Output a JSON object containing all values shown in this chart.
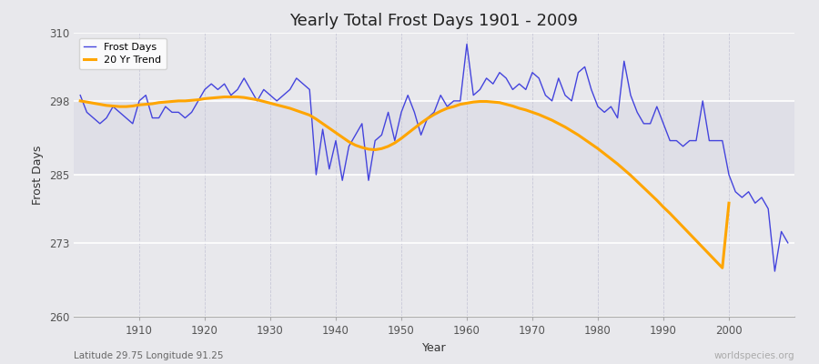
{
  "title": "Yearly Total Frost Days 1901 - 2009",
  "xlabel": "Year",
  "ylabel": "Frost Days",
  "subtitle": "Latitude 29.75 Longitude 91.25",
  "watermark": "worldspecies.org",
  "ylim": [
    260,
    310
  ],
  "yticks": [
    260,
    273,
    285,
    298,
    310
  ],
  "xlim": [
    1900,
    2010
  ],
  "xticks": [
    1910,
    1920,
    1930,
    1940,
    1950,
    1960,
    1970,
    1980,
    1990,
    2000
  ],
  "line_color": "#4444dd",
  "trend_color": "#FFA500",
  "bg_color": "#e8e8ec",
  "plot_bg": "#ebebef",
  "grid_color_h": "#d8d8e0",
  "grid_color_v": "#d0d0dc",
  "years": [
    1901,
    1902,
    1903,
    1904,
    1905,
    1906,
    1907,
    1908,
    1909,
    1910,
    1911,
    1912,
    1913,
    1914,
    1915,
    1916,
    1917,
    1918,
    1919,
    1920,
    1921,
    1922,
    1923,
    1924,
    1925,
    1926,
    1927,
    1928,
    1929,
    1930,
    1931,
    1932,
    1933,
    1934,
    1935,
    1936,
    1937,
    1938,
    1939,
    1940,
    1941,
    1942,
    1943,
    1944,
    1945,
    1946,
    1947,
    1948,
    1949,
    1950,
    1951,
    1952,
    1953,
    1954,
    1955,
    1956,
    1957,
    1958,
    1959,
    1960,
    1961,
    1962,
    1963,
    1964,
    1965,
    1966,
    1967,
    1968,
    1969,
    1970,
    1971,
    1972,
    1973,
    1974,
    1975,
    1976,
    1977,
    1978,
    1979,
    1980,
    1981,
    1982,
    1983,
    1984,
    1985,
    1986,
    1987,
    1988,
    1989,
    1990,
    1991,
    1992,
    1993,
    1994,
    1995,
    1996,
    1997,
    1998,
    1999,
    2000,
    2001,
    2002,
    2003,
    2004,
    2005,
    2006,
    2007,
    2008,
    2009
  ],
  "frost_days": [
    299,
    296,
    295,
    294,
    295,
    297,
    296,
    295,
    294,
    298,
    299,
    295,
    295,
    297,
    296,
    296,
    295,
    296,
    298,
    300,
    301,
    300,
    301,
    299,
    300,
    302,
    300,
    298,
    300,
    299,
    298,
    299,
    300,
    302,
    301,
    300,
    285,
    293,
    286,
    291,
    284,
    290,
    292,
    294,
    284,
    291,
    292,
    296,
    291,
    296,
    299,
    296,
    292,
    295,
    296,
    299,
    297,
    298,
    298,
    308,
    299,
    300,
    302,
    301,
    303,
    302,
    300,
    301,
    300,
    303,
    302,
    299,
    298,
    302,
    299,
    298,
    303,
    304,
    300,
    297,
    296,
    297,
    295,
    305,
    299,
    296,
    294,
    294,
    297,
    294,
    291,
    291,
    290,
    291,
    291,
    298,
    291,
    291,
    291,
    285,
    282,
    281,
    282,
    280,
    281,
    279,
    268,
    275,
    273
  ],
  "trend_years": [
    1901,
    1902,
    1903,
    1904,
    1905,
    1906,
    1907,
    1908,
    1909,
    1910,
    1911,
    1912,
    1913,
    1914,
    1915,
    1916,
    1917,
    1918,
    1919,
    1920,
    1921,
    1922,
    1923,
    1924,
    1925,
    1926,
    1927,
    1928,
    1929,
    1930,
    1931,
    1932,
    1933,
    1934,
    1935,
    1936,
    1937,
    1938,
    1939,
    1940,
    1941,
    1942,
    1943,
    1944,
    1945,
    1946,
    1947,
    1948,
    1949,
    1950,
    1951,
    1952,
    1953,
    1954,
    1955,
    1956,
    1957,
    1958,
    1959,
    1960,
    1961,
    1962,
    1963,
    1964,
    1965,
    1966,
    1967,
    1968,
    1969,
    1970,
    1971,
    1972,
    1973,
    1974,
    1975,
    1976,
    1977,
    1978,
    1979,
    1980,
    1981,
    1982,
    1983,
    1984,
    1985,
    1986,
    1987,
    1988,
    1989,
    1990,
    1991,
    1992,
    1993,
    1994,
    1995,
    1996,
    1997,
    1998,
    1999,
    2000
  ],
  "trend_values": [
    298,
    297.8,
    297.6,
    297.4,
    297.2,
    297.1,
    297.0,
    297.0,
    297.1,
    297.3,
    297.4,
    297.5,
    297.7,
    297.8,
    297.9,
    298.0,
    298.0,
    298.1,
    298.2,
    298.4,
    298.5,
    298.6,
    298.7,
    298.7,
    298.7,
    298.6,
    298.4,
    298.2,
    297.9,
    297.6,
    297.3,
    297.0,
    296.7,
    296.3,
    295.9,
    295.5,
    294.8,
    294.0,
    293.2,
    292.4,
    291.6,
    290.8,
    290.2,
    289.8,
    289.5,
    289.4,
    289.6,
    290.0,
    290.6,
    291.4,
    292.3,
    293.2,
    294.1,
    294.9,
    295.6,
    296.2,
    296.7,
    297.0,
    297.4,
    297.6,
    297.8,
    297.9,
    297.9,
    297.8,
    297.7,
    297.4,
    297.1,
    296.7,
    296.4,
    296.0,
    295.6,
    295.1,
    294.6,
    294.0,
    293.4,
    292.7,
    292.0,
    291.2,
    290.4,
    289.6,
    288.7,
    287.8,
    286.9,
    285.9,
    284.9,
    283.8,
    282.7,
    281.6,
    280.5,
    279.3,
    278.2,
    277.0,
    275.8,
    274.6,
    273.4,
    272.2,
    271.0,
    269.8,
    268.6,
    280.0
  ]
}
